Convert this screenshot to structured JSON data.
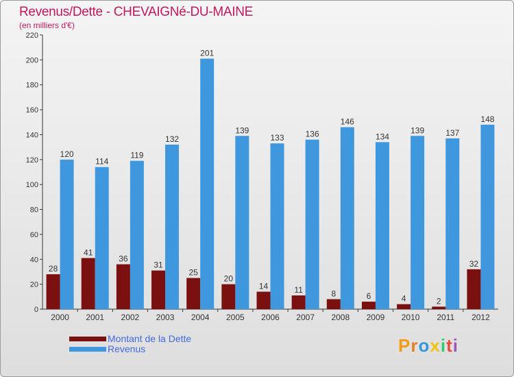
{
  "colors": {
    "dette": "#7a1010",
    "revenus": "#3f97de",
    "title": "#c2185b",
    "legend_text": "#4169e1"
  },
  "chart_data": {
    "type": "bar",
    "title": "Revenus/Dette - CHEVAIGNé-DU-MAINE",
    "subtitle": "(en milliers d'€)",
    "categories": [
      "2000",
      "2001",
      "2002",
      "2003",
      "2004",
      "2005",
      "2006",
      "2007",
      "2008",
      "2009",
      "2010",
      "2011",
      "2012"
    ],
    "series": [
      {
        "name": "Montant de la Dette",
        "values": [
          28,
          41,
          36,
          31,
          25,
          20,
          14,
          11,
          8,
          6,
          4,
          2,
          32
        ]
      },
      {
        "name": "Revenus",
        "values": [
          120,
          114,
          119,
          132,
          201,
          139,
          133,
          136,
          146,
          134,
          139,
          137,
          148
        ]
      }
    ],
    "ylim": [
      0,
      220
    ],
    "yticks": [
      0,
      20,
      40,
      60,
      80,
      100,
      120,
      140,
      160,
      180,
      200,
      220
    ],
    "legend_position": "bottom-left",
    "grid": false
  },
  "logo": {
    "letters": [
      "P",
      "r",
      "o",
      "x",
      "i",
      "t",
      "i"
    ]
  }
}
